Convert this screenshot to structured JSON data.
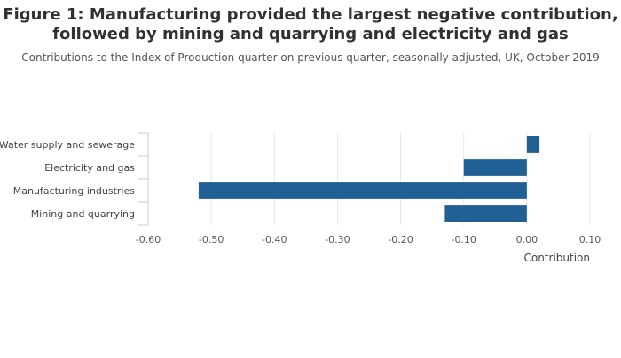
{
  "chart_data": {
    "type": "bar",
    "orientation": "horizontal",
    "title_lines": [
      "Figure 1: Manufacturing provided the largest negative contribution,",
      "followed by mining and quarrying and electricity and gas"
    ],
    "subtitle": "Contributions to the Index of Production quarter on previous quarter, seasonally adjusted, UK, October 2019",
    "categories": [
      "Water supply and sewerage",
      "Electricity and gas",
      "Manufacturing industries",
      "Mining and quarrying"
    ],
    "values": [
      0.02,
      -0.1,
      -0.52,
      -0.13
    ],
    "xlabel": "Contribution",
    "ylabel": "",
    "xlim": [
      -0.6,
      0.1
    ],
    "x_ticks": [
      -0.6,
      -0.5,
      -0.4,
      -0.3,
      -0.2,
      -0.1,
      0.0,
      0.1
    ],
    "x_tick_labels": [
      "-0.60",
      "-0.50",
      "-0.40",
      "-0.30",
      "-0.20",
      "-0.10",
      "0.00",
      "0.10"
    ],
    "grid": "vertical",
    "legend": "none",
    "colors": {
      "bar": "#206095",
      "grid": "#e6e6e6",
      "axis": "#cccccc"
    }
  }
}
